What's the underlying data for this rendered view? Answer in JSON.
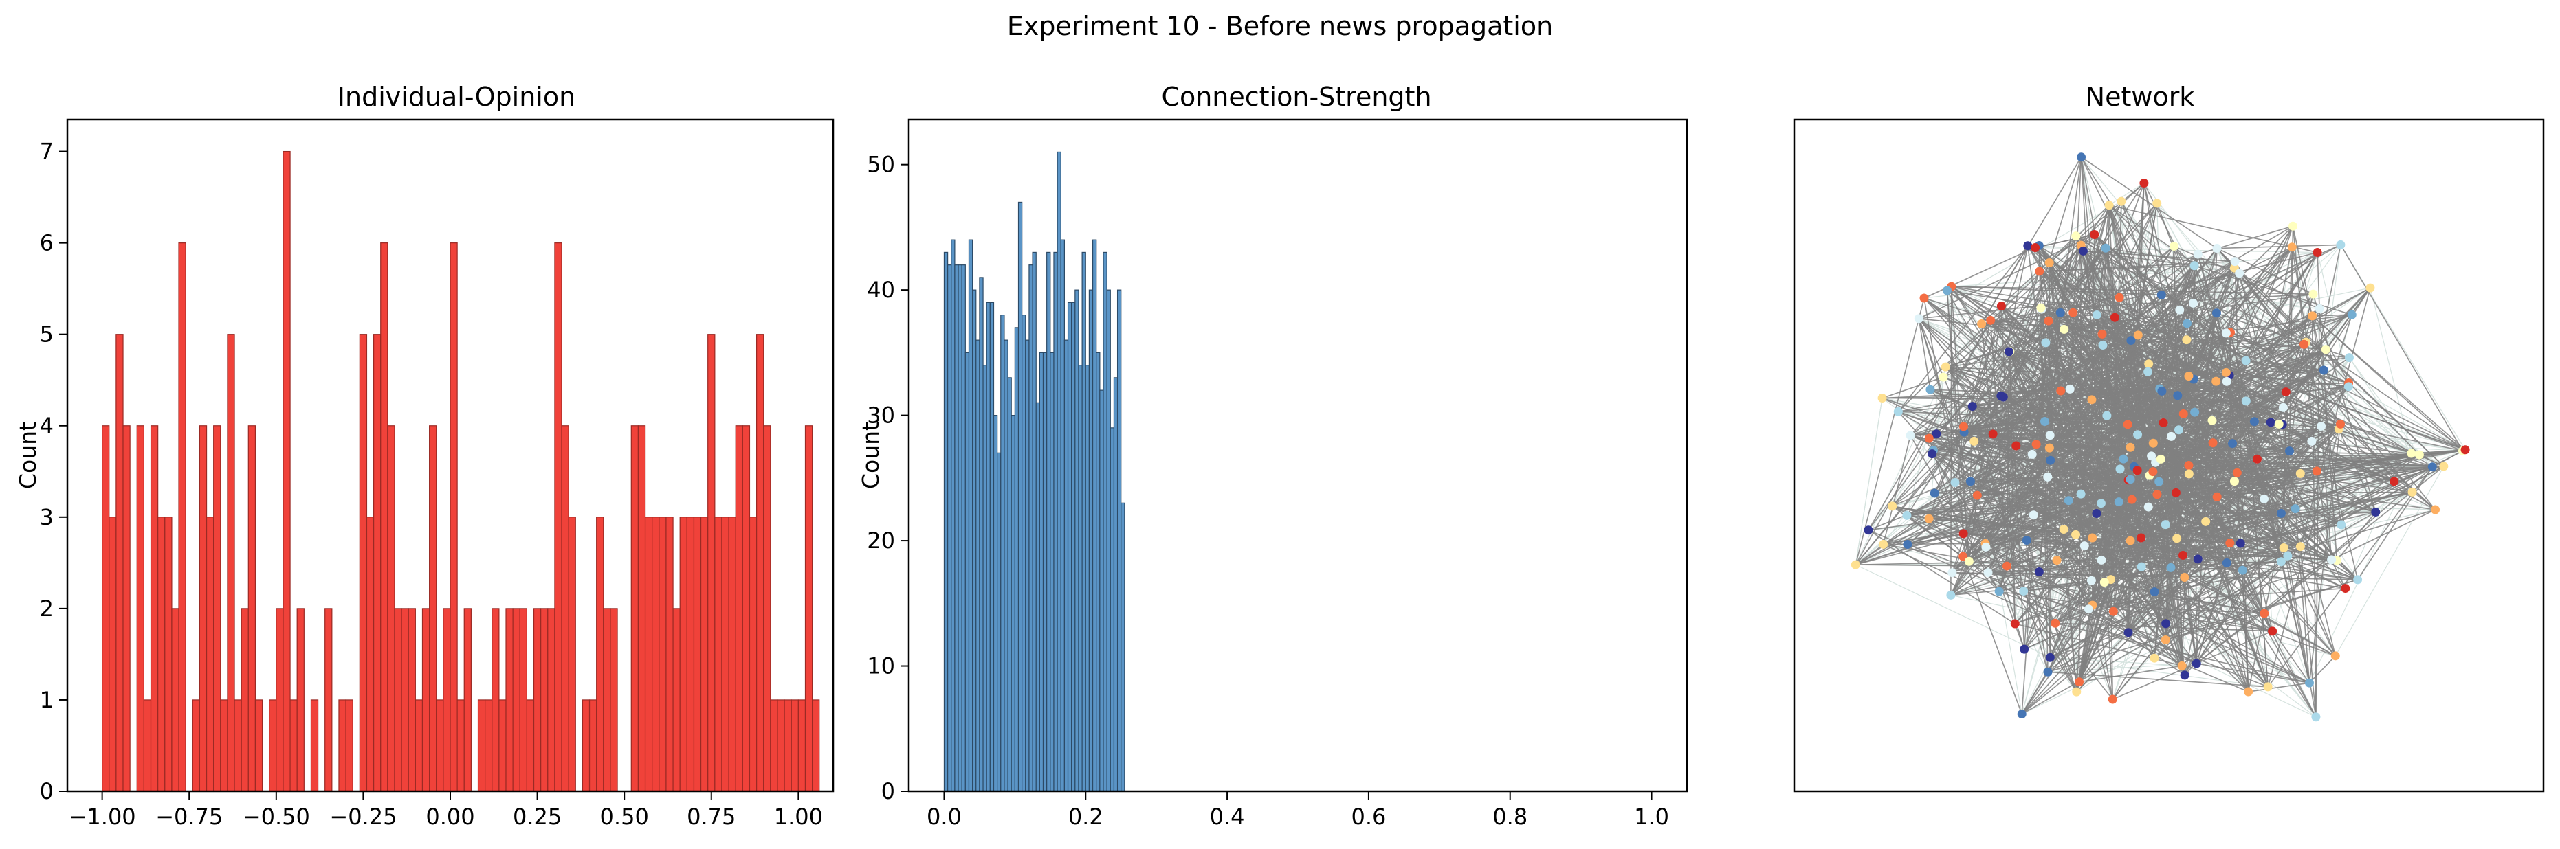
{
  "figure_title": "Experiment 10 - Before news propagation",
  "chart_data": [
    {
      "type": "bar",
      "title": "Individual-Opinion",
      "xlabel": "",
      "ylabel": "Count",
      "xlim": [
        -1.1,
        1.1
      ],
      "ylim": [
        0,
        7.35
      ],
      "xticks": [
        -1.0,
        -0.75,
        -0.5,
        -0.25,
        0.0,
        0.25,
        0.5,
        0.75,
        1.0
      ],
      "xtick_labels": [
        "−1.00",
        "−0.75",
        "−0.50",
        "−0.25",
        "0.00",
        "0.25",
        "0.50",
        "0.75",
        "1.00"
      ],
      "yticks": [
        0,
        1,
        2,
        3,
        4,
        5,
        6,
        7
      ],
      "bin_start": -1.0,
      "bin_width": 0.02,
      "values": [
        4,
        3,
        5,
        4,
        0,
        4,
        1,
        4,
        3,
        3,
        2,
        6,
        0,
        1,
        4,
        3,
        4,
        1,
        5,
        1,
        2,
        4,
        1,
        0,
        1,
        2,
        7,
        1,
        2,
        0,
        1,
        0,
        2,
        0,
        1,
        1,
        0,
        5,
        3,
        5,
        6,
        4,
        2,
        2,
        2,
        1,
        2,
        4,
        1,
        2,
        6,
        1,
        2,
        0,
        1,
        1,
        2,
        1,
        2,
        2,
        2,
        1,
        2,
        2,
        2,
        6,
        4,
        3,
        0,
        1,
        1,
        3,
        2,
        2,
        0,
        0,
        4,
        4,
        3,
        3,
        3,
        3,
        2,
        3,
        3,
        3,
        3,
        5,
        3,
        3,
        3,
        4,
        4,
        3,
        5,
        4,
        1,
        1,
        1,
        1,
        1,
        4,
        1
      ],
      "colors": {
        "bar": "#f0423a",
        "edge": "#9b2a24"
      },
      "grid": false,
      "legend": "none"
    },
    {
      "type": "bar",
      "title": "Connection-Strength",
      "xlabel": "",
      "ylabel": "Count",
      "xlim": [
        -0.05,
        1.05
      ],
      "ylim": [
        0,
        53.6
      ],
      "xticks": [
        0.0,
        0.2,
        0.4,
        0.6,
        0.8,
        1.0
      ],
      "xtick_labels": [
        "0.0",
        "0.2",
        "0.4",
        "0.6",
        "0.8",
        "1.0"
      ],
      "yticks": [
        0,
        10,
        20,
        30,
        40,
        50
      ],
      "bin_start": 0.0,
      "bin_width": 0.005,
      "values": [
        43,
        42,
        44,
        42,
        42,
        42,
        35,
        44,
        40,
        36,
        41,
        34,
        39,
        39,
        30,
        27,
        38,
        36,
        33,
        30,
        37,
        47,
        38,
        36,
        42,
        43,
        31,
        35,
        35,
        43,
        35,
        43,
        51,
        44,
        36,
        39,
        39,
        40,
        34,
        43,
        34,
        40,
        44,
        35,
        32,
        43,
        40,
        29,
        33,
        40,
        23
      ],
      "colors": {
        "bar": "#5a94c6",
        "edge": "#2c4a66"
      },
      "grid": false,
      "legend": "none"
    },
    {
      "type": "network",
      "title": "Network",
      "node_count": 260,
      "colors": {
        "edge_dark": "#808080",
        "edge_light": "#d6e3df",
        "node_palette": [
          "#d62a24",
          "#f46d43",
          "#fdae61",
          "#fee090",
          "#ffffbf",
          "#e0f3f8",
          "#abd9e9",
          "#74add1",
          "#4575b4",
          "#313695"
        ]
      }
    }
  ]
}
